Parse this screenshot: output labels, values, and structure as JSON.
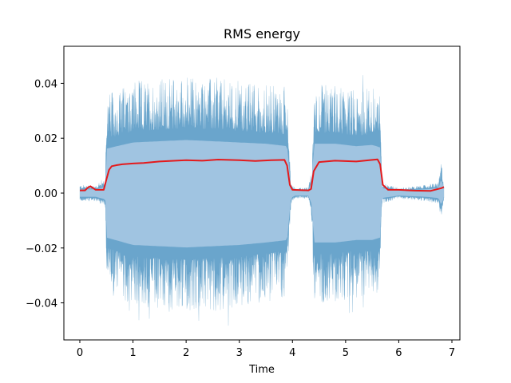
{
  "chart_data": {
    "type": "line",
    "title": "RMS energy",
    "xlabel": "Time",
    "ylabel": "",
    "xlim": [
      -0.3,
      7.15
    ],
    "ylim": [
      -0.0535,
      0.0535
    ],
    "xticks": [
      0,
      1,
      2,
      3,
      4,
      5,
      6,
      7
    ],
    "xtick_labels": [
      "0",
      "1",
      "2",
      "3",
      "4",
      "5",
      "6",
      "7"
    ],
    "yticks": [
      -0.04,
      -0.02,
      0.0,
      0.02,
      0.04
    ],
    "ytick_labels": [
      "−0.04",
      "−0.02",
      "0.00",
      "0.02",
      "0.04"
    ],
    "grid": false,
    "colors": {
      "waveform": "#1f77b4",
      "rms": "#e41a1c"
    },
    "series": [
      {
        "type": "waveform-envelope",
        "x": [
          0.0,
          0.3,
          0.48,
          0.5,
          1.0,
          1.5,
          2.0,
          2.5,
          3.0,
          3.5,
          3.9,
          3.97,
          4.05,
          4.3,
          4.37,
          4.4,
          4.8,
          5.2,
          5.5,
          5.65,
          5.68,
          6.0,
          6.5,
          6.75,
          6.8,
          6.85
        ],
        "max": [
          0.003,
          0.003,
          0.005,
          0.036,
          0.041,
          0.042,
          0.043,
          0.042,
          0.041,
          0.04,
          0.038,
          0.004,
          0.002,
          0.002,
          0.01,
          0.04,
          0.04,
          0.038,
          0.039,
          0.037,
          0.004,
          0.002,
          0.003,
          0.004,
          0.012,
          0.003
        ],
        "min": [
          -0.003,
          -0.003,
          -0.005,
          -0.036,
          -0.042,
          -0.043,
          -0.044,
          -0.043,
          -0.042,
          -0.04,
          -0.038,
          -0.004,
          -0.002,
          -0.002,
          -0.01,
          -0.04,
          -0.04,
          -0.038,
          -0.038,
          -0.036,
          -0.004,
          -0.002,
          -0.003,
          -0.004,
          -0.01,
          -0.003
        ]
      },
      {
        "type": "rms-line",
        "x": [
          0.0,
          0.1,
          0.15,
          0.2,
          0.3,
          0.45,
          0.5,
          0.55,
          0.6,
          0.7,
          0.8,
          1.0,
          1.2,
          1.5,
          1.8,
          2.0,
          2.3,
          2.6,
          3.0,
          3.3,
          3.6,
          3.85,
          3.9,
          3.95,
          4.0,
          4.3,
          4.35,
          4.4,
          4.5,
          4.8,
          5.2,
          5.5,
          5.6,
          5.65,
          5.7,
          5.8,
          6.0,
          6.3,
          6.6,
          6.8,
          6.85
        ],
        "y": [
          0.001,
          0.001,
          0.002,
          0.0025,
          0.0012,
          0.0012,
          0.005,
          0.0085,
          0.0098,
          0.0102,
          0.0105,
          0.0108,
          0.011,
          0.0115,
          0.0118,
          0.012,
          0.0118,
          0.0122,
          0.012,
          0.0117,
          0.012,
          0.0121,
          0.01,
          0.003,
          0.0012,
          0.001,
          0.0015,
          0.008,
          0.0113,
          0.0118,
          0.0115,
          0.0121,
          0.0123,
          0.0105,
          0.003,
          0.0012,
          0.0012,
          0.0009,
          0.0008,
          0.0018,
          0.0022
        ]
      }
    ]
  }
}
